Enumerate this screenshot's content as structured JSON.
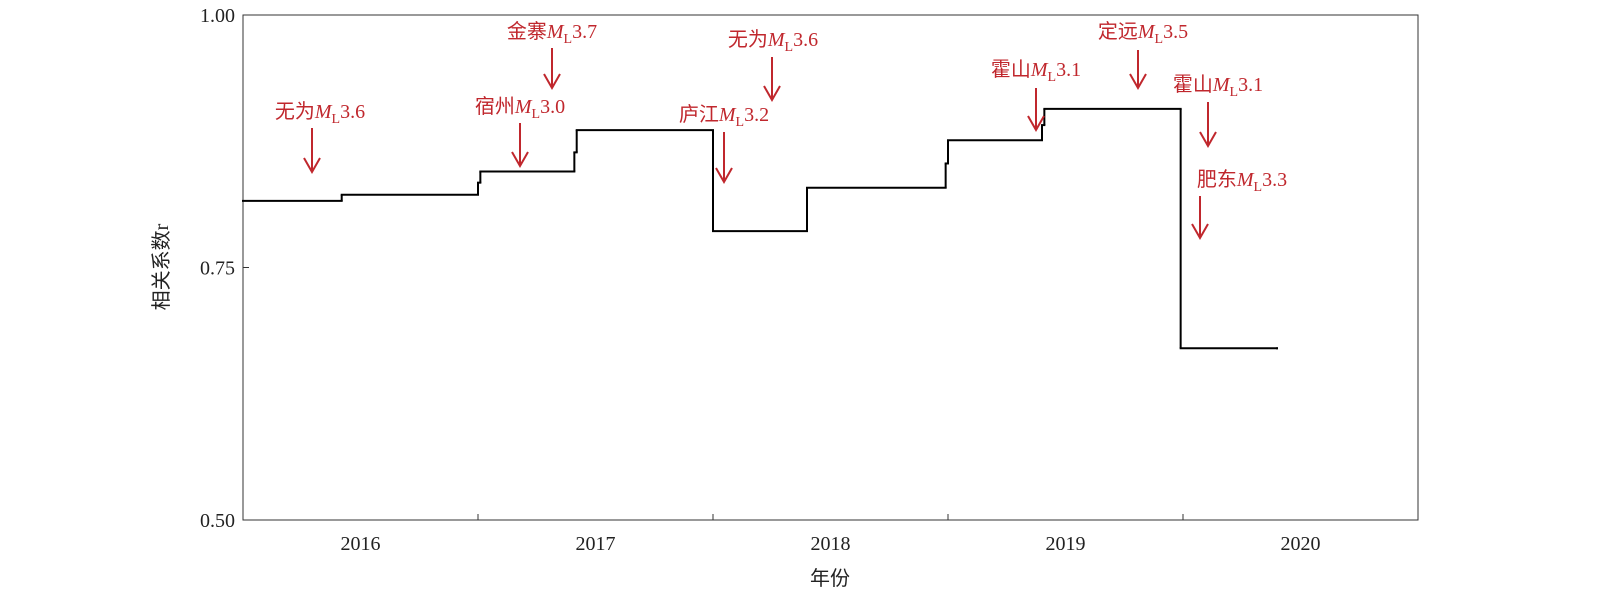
{
  "chart_data": {
    "type": "step",
    "xlabel": "年份",
    "ylabel": "相关系数r",
    "xlim": [
      2016,
      2021
    ],
    "ylim": [
      0.5,
      1.0
    ],
    "xticks": [
      {
        "value": 2016.5,
        "label": "2016"
      },
      {
        "value": 2017.5,
        "label": "2017"
      },
      {
        "value": 2018.5,
        "label": "2018"
      },
      {
        "value": 2019.5,
        "label": "2019"
      },
      {
        "value": 2020.5,
        "label": "2020"
      }
    ],
    "xminorticks": [
      2017,
      2018,
      2019,
      2020
    ],
    "yticks": [
      {
        "value": 0.5,
        "label": "0.50"
      },
      0.75,
      {
        "value": 1.0,
        "label": "1.00"
      }
    ],
    "x": [
      2016.0,
      2016.42,
      2017.0,
      2017.01,
      2017.41,
      2017.42,
      2018.0,
      2018.4,
      2018.99,
      2019.0,
      2019.4,
      2019.41,
      2019.99,
      2020.4
    ],
    "values": [
      0.816,
      0.822,
      0.834,
      0.845,
      0.864,
      0.886,
      0.786,
      0.829,
      0.853,
      0.876,
      0.891,
      0.907,
      0.67,
      0.67
    ],
    "color": "#000000",
    "annotation_color": "#c0272d",
    "magnitude_symbol": "M",
    "magnitude_subscript": "L",
    "annotations": [
      {
        "place": "无为",
        "magnitude": "3.6"
      },
      {
        "place": "金寨",
        "magnitude": "3.7"
      },
      {
        "place": "宿州",
        "magnitude": "3.0"
      },
      {
        "place": "无为",
        "magnitude": "3.6"
      },
      {
        "place": "庐江",
        "magnitude": "3.2"
      },
      {
        "place": "霍山",
        "magnitude": "3.1"
      },
      {
        "place": "定远",
        "magnitude": "3.5"
      },
      {
        "place": "霍山",
        "magnitude": "3.1"
      },
      {
        "place": "肥东",
        "magnitude": "3.3"
      }
    ]
  }
}
